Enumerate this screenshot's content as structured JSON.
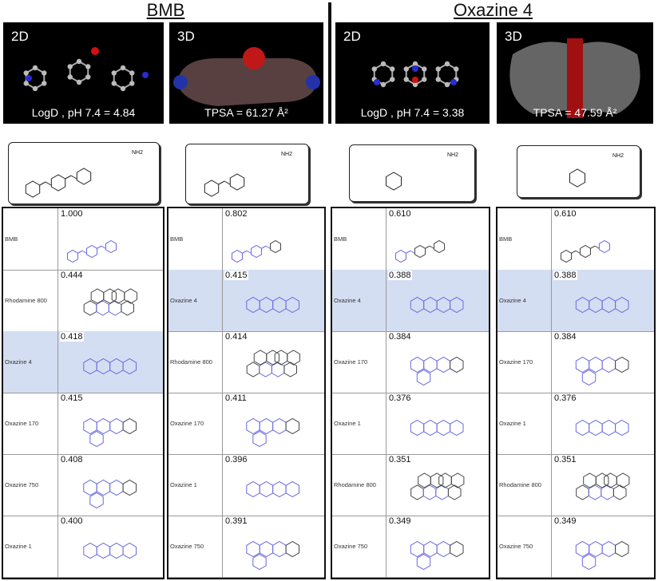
{
  "headers": {
    "left": "BMB",
    "right": "Oxazine 4"
  },
  "renders": [
    {
      "tag": "2D",
      "caption": "LogD , pH 7.4 = 4.84"
    },
    {
      "tag": "3D",
      "caption": "TPSA = 61.27 Å²"
    },
    {
      "tag": "2D",
      "caption": "LogD , pH 7.4 = 3.38"
    },
    {
      "tag": "3D",
      "caption": "TPSA = 47.59 Å²"
    }
  ],
  "query_labels": [
    "NH2",
    "NH2",
    "NH2",
    "NH2"
  ],
  "colors": {
    "highlight": "#d4def2",
    "match": "#6a6ae0",
    "atom_n": "#2b2bd0",
    "atom_o": "#d01010"
  },
  "panels": [
    {
      "rows": [
        {
          "name": "BMB",
          "score": "1.000"
        },
        {
          "name": "Rhodamine 800",
          "score": "0.444"
        },
        {
          "name": "Oxazine 4",
          "score": "0.418",
          "highlight": true
        },
        {
          "name": "Oxazine 170",
          "score": "0.415"
        },
        {
          "name": "Oxazine 750",
          "score": "0.408"
        },
        {
          "name": "Oxazine 1",
          "score": "0.400"
        }
      ]
    },
    {
      "rows": [
        {
          "name": "BMB",
          "score": "0.802"
        },
        {
          "name": "Oxazine 4",
          "score": "0.415",
          "highlight": true
        },
        {
          "name": "Rhodamine 800",
          "score": "0.414"
        },
        {
          "name": "Oxazine 170",
          "score": "0.411"
        },
        {
          "name": "Oxazine 1",
          "score": "0.396"
        },
        {
          "name": "Oxazine 750",
          "score": "0.391"
        }
      ]
    },
    {
      "rows": [
        {
          "name": "BMB",
          "score": "0.610"
        },
        {
          "name": "Oxazine 4",
          "score": "0.388",
          "highlight": true
        },
        {
          "name": "Oxazine 170",
          "score": "0.384"
        },
        {
          "name": "Oxazine 1",
          "score": "0.376"
        },
        {
          "name": "Rhodamine 800",
          "score": "0.351"
        },
        {
          "name": "Oxazine 750",
          "score": "0.349"
        }
      ]
    },
    {
      "rows": [
        {
          "name": "BMB",
          "score": "0.610"
        },
        {
          "name": "Oxazine 4",
          "score": "0.388",
          "highlight": true
        },
        {
          "name": "Oxazine 170",
          "score": "0.384"
        },
        {
          "name": "Oxazine 1",
          "score": "0.376"
        },
        {
          "name": "Rhodamine 800",
          "score": "0.351"
        },
        {
          "name": "Oxazine 750",
          "score": "0.349"
        }
      ]
    }
  ]
}
